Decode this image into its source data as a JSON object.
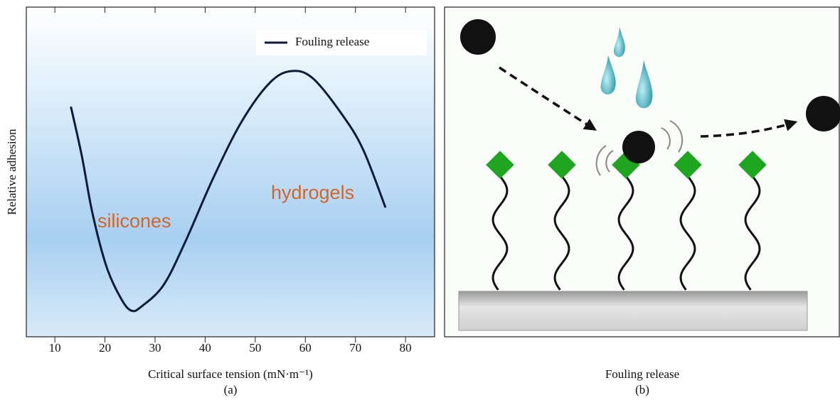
{
  "chart_data": {
    "type": "line",
    "panel_label": "(a)",
    "x_label": "Critical surface tension (mN·m⁻¹)",
    "y_label": "Relative adhesion",
    "annotations": [
      "silicones",
      "hydrogels"
    ],
    "x": [
      13.2,
      15.4,
      17.5,
      20.3,
      23.2,
      25.3,
      27.4,
      31.7,
      36.0,
      41.6,
      47.3,
      53.0,
      57.3,
      61.5,
      67.2,
      71.5,
      76.0
    ],
    "series": [
      {
        "name": "Fouling release",
        "color": "#0d1b3a",
        "values": [
          69.8,
          54.7,
          37.5,
          21.3,
          11.6,
          7.9,
          9.3,
          15.7,
          28.7,
          48.1,
          65.3,
          77.2,
          80.6,
          78.4,
          67.7,
          56.9,
          39.2
        ]
      }
    ],
    "xlim": [
      4.3,
      85.8
    ],
    "ylim": [
      0,
      100
    ],
    "xticks": [
      10,
      20,
      30,
      40,
      50,
      60,
      70,
      80
    ],
    "legend": "upper right"
  },
  "panel_b": {
    "caption": "Fouling release",
    "label": "(b)"
  }
}
